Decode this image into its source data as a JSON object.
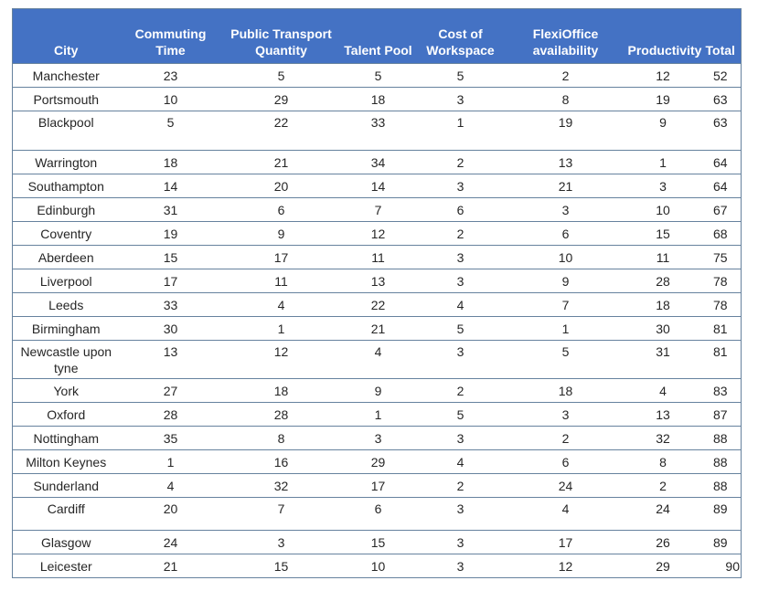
{
  "colors": {
    "header_background": "#4472C4",
    "header_text": "#FFFFFF",
    "border": "#66829E",
    "cell_text": "#262626",
    "row_background": "#FFFFFF"
  },
  "table": {
    "columns": [
      "City",
      "Commuting Time",
      "Public Transport Quantity",
      "Talent Pool",
      "Cost of Workspace",
      "FlexiOffice availability",
      "Productivity",
      "Total"
    ],
    "rows": [
      [
        "Manchester",
        23,
        5,
        5,
        5,
        2,
        12,
        52
      ],
      [
        "Portsmouth",
        10,
        29,
        18,
        3,
        8,
        19,
        63
      ],
      [
        "Blackpool",
        5,
        22,
        33,
        1,
        19,
        9,
        63
      ],
      [
        "Warrington",
        18,
        21,
        34,
        2,
        13,
        1,
        64
      ],
      [
        "Southampton",
        14,
        20,
        14,
        3,
        21,
        3,
        64
      ],
      [
        "Edinburgh",
        31,
        6,
        7,
        6,
        3,
        10,
        67
      ],
      [
        "Coventry",
        19,
        9,
        12,
        2,
        6,
        15,
        68
      ],
      [
        "Aberdeen",
        15,
        17,
        11,
        3,
        10,
        11,
        75
      ],
      [
        "Liverpool",
        17,
        11,
        13,
        3,
        9,
        28,
        78
      ],
      [
        "Leeds",
        33,
        4,
        22,
        4,
        7,
        18,
        78
      ],
      [
        "Birmingham",
        30,
        1,
        21,
        5,
        1,
        30,
        81
      ],
      [
        "Newcastle upon tyne",
        13,
        12,
        4,
        3,
        5,
        31,
        81
      ],
      [
        "York",
        27,
        18,
        9,
        2,
        18,
        4,
        83
      ],
      [
        "Oxford",
        28,
        28,
        1,
        5,
        3,
        13,
        87
      ],
      [
        "Nottingham",
        35,
        8,
        3,
        3,
        2,
        32,
        88
      ],
      [
        "Milton Keynes",
        1,
        16,
        29,
        4,
        6,
        8,
        88
      ],
      [
        "Sunderland",
        4,
        32,
        17,
        2,
        24,
        2,
        88
      ],
      [
        "Cardiff",
        20,
        7,
        6,
        3,
        4,
        24,
        89
      ],
      [
        "Glasgow",
        24,
        3,
        15,
        3,
        17,
        26,
        89
      ],
      [
        "Leicester",
        21,
        15,
        10,
        3,
        12,
        29,
        90
      ]
    ]
  }
}
